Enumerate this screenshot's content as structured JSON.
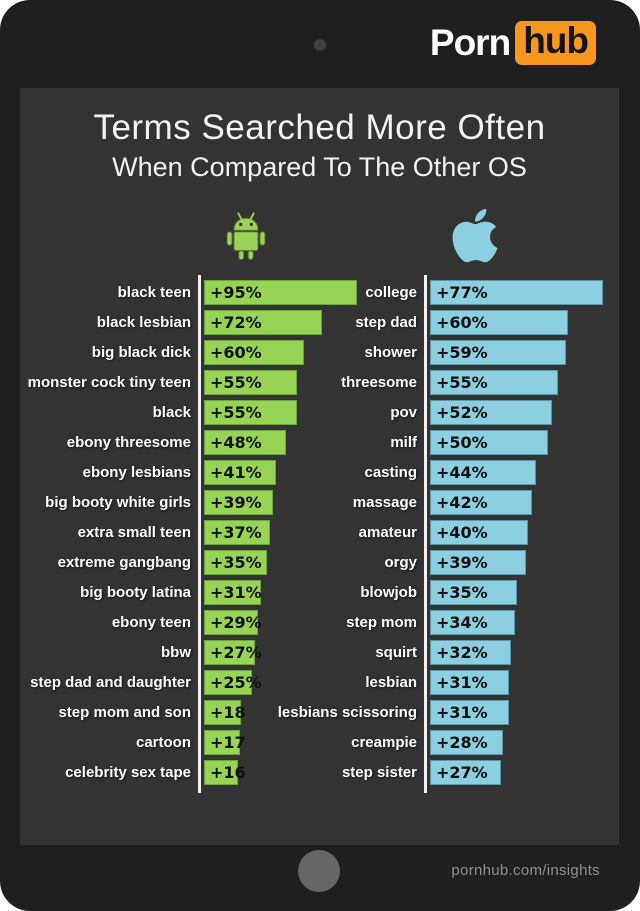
{
  "logo": {
    "word1": "Porn",
    "word2": "hub",
    "accent_color": "#f7971e"
  },
  "title": "Terms Searched More Often",
  "subtitle": "When Compared To The Other OS",
  "footer": {
    "link_text": "pornhub.com/insights"
  },
  "colors": {
    "android_green": "#97d355",
    "android_border": "#6ea33e",
    "apple_blue": "#8ccfe0",
    "apple_border": "#5e96a6",
    "screen_bg": "#333333",
    "frame_bg": "#1f1f1f"
  },
  "chart_data": {
    "type": "bar",
    "orientation": "horizontal",
    "title": "Terms Searched More Often",
    "subtitle": "When Compared To The Other OS",
    "legend_position": "top-icons",
    "grid": false,
    "groups": [
      {
        "platform": "Android",
        "icon": "android-icon",
        "bar_color": "#97d355",
        "bar_border": "#6ea33e",
        "items": [
          {
            "term": "black teen",
            "value": 95,
            "label": "+95%"
          },
          {
            "term": "black lesbian",
            "value": 72,
            "label": "+72%"
          },
          {
            "term": "big black dick",
            "value": 60,
            "label": "+60%"
          },
          {
            "term": "monster cock tiny teen",
            "value": 55,
            "label": "+55%"
          },
          {
            "term": "black",
            "value": 55,
            "label": "+55%"
          },
          {
            "term": "ebony threesome",
            "value": 48,
            "label": "+48%"
          },
          {
            "term": "ebony lesbians",
            "value": 41,
            "label": "+41%"
          },
          {
            "term": "big booty white girls",
            "value": 39,
            "label": "+39%"
          },
          {
            "term": "extra small teen",
            "value": 37,
            "label": "+37%"
          },
          {
            "term": "extreme gangbang",
            "value": 35,
            "label": "+35%"
          },
          {
            "term": "big booty latina",
            "value": 31,
            "label": "+31%"
          },
          {
            "term": "ebony teen",
            "value": 29,
            "label": "+29%"
          },
          {
            "term": "bbw",
            "value": 27,
            "label": "+27%"
          },
          {
            "term": "step dad and daughter",
            "value": 25,
            "label": "+25%"
          },
          {
            "term": "step mom and son",
            "value": 18,
            "label": "+18"
          },
          {
            "term": "cartoon",
            "value": 17,
            "label": "+17"
          },
          {
            "term": "celebrity sex tape",
            "value": 16,
            "label": "+16"
          }
        ]
      },
      {
        "platform": "iOS",
        "icon": "apple-icon",
        "bar_color": "#8ccfe0",
        "bar_border": "#5e96a6",
        "items": [
          {
            "term": "college",
            "value": 77,
            "label": "+77%"
          },
          {
            "term": "step dad",
            "value": 60,
            "label": "+60%"
          },
          {
            "term": "shower",
            "value": 59,
            "label": "+59%"
          },
          {
            "term": "threesome",
            "value": 55,
            "label": "+55%"
          },
          {
            "term": "pov",
            "value": 52,
            "label": "+52%"
          },
          {
            "term": "milf",
            "value": 50,
            "label": "+50%"
          },
          {
            "term": "casting",
            "value": 44,
            "label": "+44%"
          },
          {
            "term": "massage",
            "value": 42,
            "label": "+42%"
          },
          {
            "term": "amateur",
            "value": 40,
            "label": "+40%"
          },
          {
            "term": "orgy",
            "value": 39,
            "label": "+39%"
          },
          {
            "term": "blowjob",
            "value": 35,
            "label": "+35%"
          },
          {
            "term": "step mom",
            "value": 34,
            "label": "+34%"
          },
          {
            "term": "squirt",
            "value": 32,
            "label": "+32%"
          },
          {
            "term": "lesbian",
            "value": 31,
            "label": "+31%"
          },
          {
            "term": "lesbians scissoring",
            "value": 31,
            "label": "+31%"
          },
          {
            "term": "creampie",
            "value": 28,
            "label": "+28%"
          },
          {
            "term": "step sister",
            "value": 27,
            "label": "+27%"
          }
        ]
      }
    ]
  }
}
